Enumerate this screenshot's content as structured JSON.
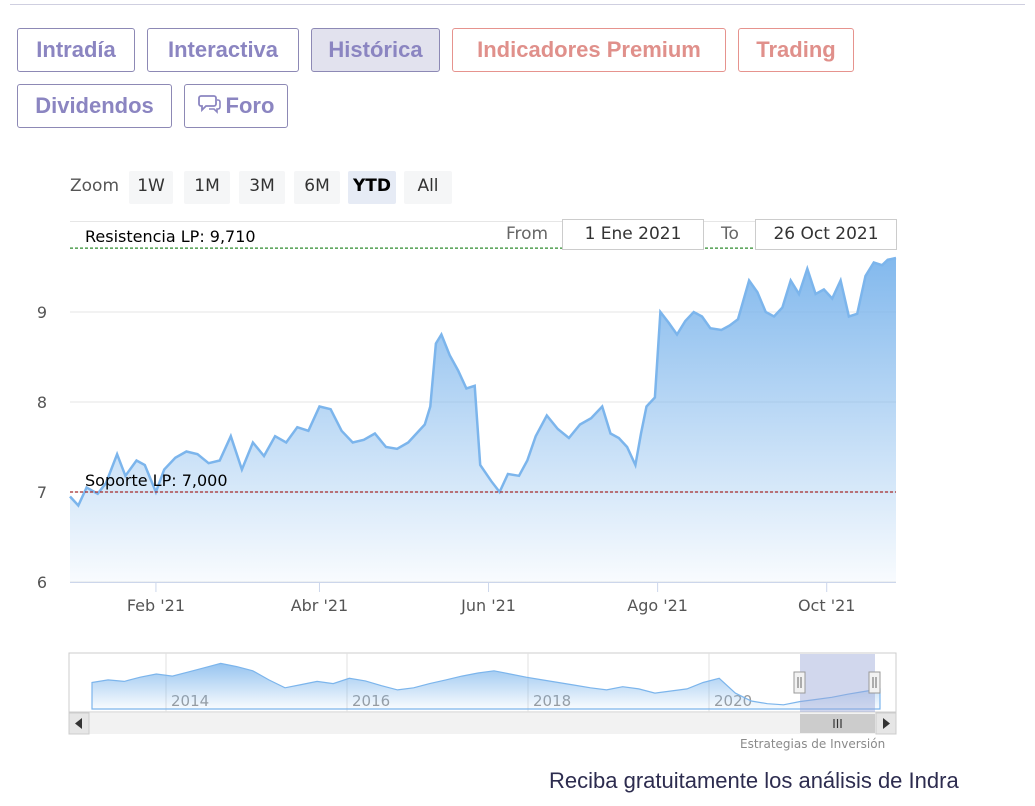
{
  "tabs": [
    {
      "label": "Intradía",
      "name": "tab-intradia",
      "style": ""
    },
    {
      "label": "Interactiva",
      "name": "tab-interactiva",
      "style": ""
    },
    {
      "label": "Histórica",
      "name": "tab-historica",
      "style": "active"
    },
    {
      "label": "Indicadores Premium",
      "name": "tab-indicadores-premium",
      "style": "red"
    },
    {
      "label": "Trading",
      "name": "tab-trading",
      "style": "red"
    },
    {
      "label": "Dividendos",
      "name": "tab-dividendos",
      "style": ""
    },
    {
      "label": "Foro",
      "name": "tab-foro",
      "style": "",
      "icon": "chat-bubbles-icon"
    }
  ],
  "zoom": {
    "label": "Zoom",
    "buttons": [
      "1W",
      "1M",
      "3M",
      "6M",
      "YTD",
      "All"
    ],
    "selected": "YTD"
  },
  "range": {
    "from_label": "From",
    "from_value": "1 Ene 2021",
    "to_label": "To",
    "to_value": "26 Oct 2021"
  },
  "chart_data": {
    "type": "area",
    "title": "",
    "ylim": [
      6,
      10
    ],
    "yticks": [
      "6",
      "7",
      "8",
      "9"
    ],
    "x_start": "2021-01-01",
    "x_end": "2021-10-26",
    "xticks": [
      {
        "label": "Feb '21",
        "date": "2021-02-01"
      },
      {
        "label": "Abr '21",
        "date": "2021-04-01"
      },
      {
        "label": "Jun '21",
        "date": "2021-06-01"
      },
      {
        "label": "Ago '21",
        "date": "2021-08-01"
      },
      {
        "label": "Oct '21",
        "date": "2021-10-01"
      }
    ],
    "grid": true,
    "series_color": "#7cb5ec",
    "plot_lines": [
      {
        "label": "Resistencia LP: 9,710",
        "value": 9.71,
        "color": "#2e8b2e"
      },
      {
        "label": "Soporte LP: 7,000",
        "value": 7.0,
        "color": "#a52a2a"
      }
    ],
    "points": [
      [
        "2021-01-01",
        6.95
      ],
      [
        "2021-01-04",
        6.85
      ],
      [
        "2021-01-07",
        7.05
      ],
      [
        "2021-01-11",
        6.98
      ],
      [
        "2021-01-14",
        7.1
      ],
      [
        "2021-01-18",
        7.42
      ],
      [
        "2021-01-21",
        7.18
      ],
      [
        "2021-01-25",
        7.35
      ],
      [
        "2021-01-28",
        7.3
      ],
      [
        "2021-02-01",
        7.0
      ],
      [
        "2021-02-04",
        7.25
      ],
      [
        "2021-02-08",
        7.38
      ],
      [
        "2021-02-12",
        7.45
      ],
      [
        "2021-02-16",
        7.42
      ],
      [
        "2021-02-20",
        7.32
      ],
      [
        "2021-02-24",
        7.35
      ],
      [
        "2021-02-28",
        7.62
      ],
      [
        "2021-03-04",
        7.25
      ],
      [
        "2021-03-08",
        7.55
      ],
      [
        "2021-03-12",
        7.4
      ],
      [
        "2021-03-16",
        7.62
      ],
      [
        "2021-03-20",
        7.55
      ],
      [
        "2021-03-24",
        7.72
      ],
      [
        "2021-03-28",
        7.68
      ],
      [
        "2021-04-01",
        7.95
      ],
      [
        "2021-04-05",
        7.92
      ],
      [
        "2021-04-09",
        7.68
      ],
      [
        "2021-04-13",
        7.55
      ],
      [
        "2021-04-17",
        7.58
      ],
      [
        "2021-04-21",
        7.65
      ],
      [
        "2021-04-25",
        7.5
      ],
      [
        "2021-04-29",
        7.48
      ],
      [
        "2021-05-03",
        7.55
      ],
      [
        "2021-05-06",
        7.65
      ],
      [
        "2021-05-09",
        7.75
      ],
      [
        "2021-05-11",
        7.95
      ],
      [
        "2021-05-13",
        8.65
      ],
      [
        "2021-05-15",
        8.75
      ],
      [
        "2021-05-18",
        8.52
      ],
      [
        "2021-05-21",
        8.35
      ],
      [
        "2021-05-24",
        8.15
      ],
      [
        "2021-05-27",
        8.18
      ],
      [
        "2021-05-29",
        7.3
      ],
      [
        "2021-06-02",
        7.12
      ],
      [
        "2021-06-05",
        7.0
      ],
      [
        "2021-06-08",
        7.2
      ],
      [
        "2021-06-12",
        7.18
      ],
      [
        "2021-06-15",
        7.35
      ],
      [
        "2021-06-18",
        7.62
      ],
      [
        "2021-06-22",
        7.85
      ],
      [
        "2021-06-26",
        7.7
      ],
      [
        "2021-06-30",
        7.6
      ],
      [
        "2021-07-04",
        7.75
      ],
      [
        "2021-07-08",
        7.82
      ],
      [
        "2021-07-12",
        7.95
      ],
      [
        "2021-07-15",
        7.65
      ],
      [
        "2021-07-18",
        7.6
      ],
      [
        "2021-07-21",
        7.5
      ],
      [
        "2021-07-24",
        7.3
      ],
      [
        "2021-07-26",
        7.65
      ],
      [
        "2021-07-28",
        7.95
      ],
      [
        "2021-07-31",
        8.05
      ],
      [
        "2021-08-02",
        9.0
      ],
      [
        "2021-08-05",
        8.88
      ],
      [
        "2021-08-08",
        8.75
      ],
      [
        "2021-08-11",
        8.9
      ],
      [
        "2021-08-14",
        9.0
      ],
      [
        "2021-08-17",
        8.95
      ],
      [
        "2021-08-20",
        8.82
      ],
      [
        "2021-08-24",
        8.8
      ],
      [
        "2021-08-27",
        8.85
      ],
      [
        "2021-08-30",
        8.92
      ],
      [
        "2021-09-03",
        9.35
      ],
      [
        "2021-09-06",
        9.22
      ],
      [
        "2021-09-09",
        9.0
      ],
      [
        "2021-09-12",
        8.95
      ],
      [
        "2021-09-15",
        9.05
      ],
      [
        "2021-09-18",
        9.35
      ],
      [
        "2021-09-21",
        9.2
      ],
      [
        "2021-09-24",
        9.48
      ],
      [
        "2021-09-27",
        9.2
      ],
      [
        "2021-09-30",
        9.25
      ],
      [
        "2021-10-03",
        9.15
      ],
      [
        "2021-10-06",
        9.35
      ],
      [
        "2021-10-09",
        8.95
      ],
      [
        "2021-10-12",
        8.98
      ],
      [
        "2021-10-15",
        9.4
      ],
      [
        "2021-10-18",
        9.55
      ],
      [
        "2021-10-21",
        9.52
      ],
      [
        "2021-10-23",
        9.58
      ],
      [
        "2021-10-26",
        9.6
      ]
    ]
  },
  "navigator": {
    "year_labels": [
      "2014",
      "2016",
      "2018",
      "2020"
    ],
    "handle_icon": "grip-handle-icon",
    "scrollbar": {
      "left_icon": "arrow-left-icon",
      "right_icon": "arrow-right-icon",
      "thumb_icon": "grip-lines-icon"
    },
    "points": [
      0.5,
      0.55,
      0.52,
      0.6,
      0.66,
      0.62,
      0.7,
      0.78,
      0.86,
      0.8,
      0.72,
      0.55,
      0.4,
      0.46,
      0.52,
      0.48,
      0.58,
      0.53,
      0.44,
      0.36,
      0.4,
      0.48,
      0.55,
      0.62,
      0.68,
      0.72,
      0.66,
      0.6,
      0.55,
      0.5,
      0.45,
      0.4,
      0.36,
      0.42,
      0.38,
      0.3,
      0.34,
      0.38,
      0.5,
      0.58,
      0.3,
      0.15,
      0.1,
      0.08,
      0.14,
      0.18,
      0.22,
      0.28,
      0.33,
      0.38
    ]
  },
  "credits": "Estrategias de Inversión",
  "cta": "Reciba gratuitamente los análisis de Indra"
}
